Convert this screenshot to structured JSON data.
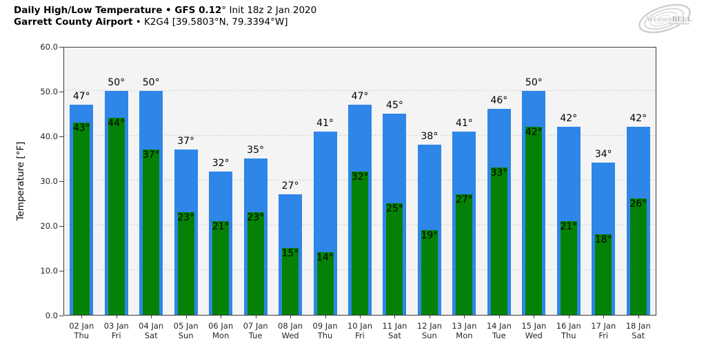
{
  "header": {
    "title_bold": "Daily High/Low Temperature • GFS 0.12",
    "title_rest": "° Init 18z 2 Jan 2020",
    "subtitle_bold": "Garrett County Airport",
    "subtitle_rest": " • K2G4 [39.5803°N, 79.3394°W]"
  },
  "logo": {
    "brand_weather": "Weather",
    "brand_bell": "BELL"
  },
  "chart_data": {
    "type": "bar",
    "title": "Daily High/Low Temperature • GFS 0.12° Init 18z 2 Jan 2020",
    "subtitle": "Garrett County Airport • K2G4 [39.5803°N, 79.3394°W]",
    "ylabel": "Temperature [°F]",
    "xlabel": "",
    "ylim": [
      0,
      60
    ],
    "yticks": [
      0,
      10,
      20,
      30,
      40,
      50,
      60
    ],
    "ytick_labels": [
      "0.0",
      "10.0",
      "20.0",
      "30.0",
      "40.0",
      "50.0",
      "60.0"
    ],
    "grid": true,
    "legend_position": "none",
    "value_suffix": "°",
    "categories": [
      "02 Jan",
      "03 Jan",
      "04 Jan",
      "05 Jan",
      "06 Jan",
      "07 Jan",
      "08 Jan",
      "09 Jan",
      "10 Jan",
      "11 Jan",
      "12 Jan",
      "13 Jan",
      "14 Jan",
      "15 Jan",
      "16 Jan",
      "17 Jan",
      "18 Jan"
    ],
    "weekdays": [
      "Thu",
      "Fri",
      "Sat",
      "Sun",
      "Mon",
      "Tue",
      "Wed",
      "Thu",
      "Fri",
      "Sat",
      "Sun",
      "Mon",
      "Tue",
      "Wed",
      "Thu",
      "Fri",
      "Sat"
    ],
    "series": [
      {
        "name": "High",
        "color": "#2E86E8",
        "values": [
          47,
          50,
          50,
          37,
          32,
          35,
          27,
          41,
          47,
          45,
          38,
          41,
          46,
          50,
          42,
          34,
          42
        ]
      },
      {
        "name": "Low",
        "color": "#058205",
        "values": [
          43,
          44,
          37,
          23,
          21,
          23,
          15,
          14,
          32,
          25,
          19,
          27,
          33,
          42,
          21,
          18,
          26
        ]
      }
    ],
    "colors": {
      "plot_background": "#f4f4f4",
      "figure_background": "#ffffff",
      "gridline": "#d7d7d7",
      "spine": "#3a3a3a",
      "high_bar": "#2E86E8",
      "low_bar": "#058205",
      "label_text": "#000000"
    }
  }
}
